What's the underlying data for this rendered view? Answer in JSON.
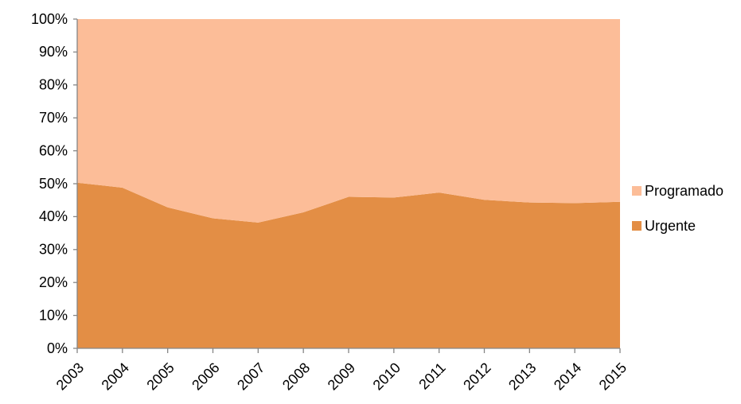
{
  "chart_data": {
    "type": "stacked-area-100",
    "x": [
      2003,
      2004,
      2005,
      2006,
      2007,
      2008,
      2009,
      2010,
      2011,
      2012,
      2013,
      2014,
      2015
    ],
    "xlim": [
      2003,
      2015
    ],
    "xticks": [
      2003,
      2004,
      2005,
      2006,
      2007,
      2008,
      2009,
      2010,
      2011,
      2012,
      2013,
      2014,
      2015
    ],
    "ylim": [
      0,
      100
    ],
    "yticks": [
      {
        "value": 0,
        "label": "0%"
      },
      {
        "value": 10,
        "label": "10%"
      },
      {
        "value": 20,
        "label": "20%"
      },
      {
        "value": 30,
        "label": "30%"
      },
      {
        "value": 40,
        "label": "40%"
      },
      {
        "value": 50,
        "label": "50%"
      },
      {
        "value": 60,
        "label": "60%"
      },
      {
        "value": 70,
        "label": "70%"
      },
      {
        "value": 80,
        "label": "80%"
      },
      {
        "value": 90,
        "label": "90%"
      },
      {
        "value": 100,
        "label": "100%"
      }
    ],
    "legend": "right",
    "series": [
      {
        "name": "Urgente",
        "color": "#e38e45",
        "values": [
          50.3,
          48.8,
          42.8,
          39.5,
          38.2,
          41.3,
          46.0,
          45.8,
          47.3,
          45.1,
          44.3,
          44.1,
          44.5
        ]
      },
      {
        "name": "Programado",
        "color": "#fcbd98",
        "values": [
          49.7,
          51.2,
          57.2,
          60.5,
          61.8,
          58.7,
          54.0,
          54.2,
          52.7,
          54.9,
          55.7,
          55.9,
          55.5
        ]
      }
    ]
  }
}
